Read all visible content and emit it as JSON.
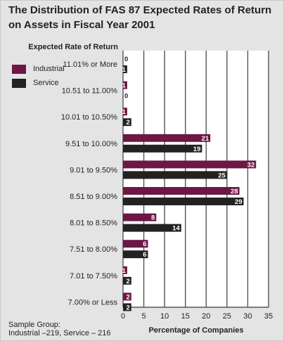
{
  "title": "The Distribution of FAS 87 Expected Rates of Return on Assets in Fiscal Year 2001",
  "sample_group": {
    "line1": "Sample Group:",
    "line2": "Industrial –219, Service – 216"
  },
  "colors": {
    "industrial": "#6e1646",
    "service": "#222222",
    "grid": "#555555"
  },
  "chart_data": {
    "type": "bar",
    "orientation": "horizontal",
    "title": "The Distribution of FAS 87 Expected Rates of Return on Assets in Fiscal Year 2001",
    "ylabel": "Expected Rate of Return",
    "xlabel": "Percentage of Companies",
    "xlim": [
      0,
      35
    ],
    "xticks": [
      0,
      5,
      10,
      15,
      20,
      25,
      30,
      35
    ],
    "grid": true,
    "legend_position": "left",
    "categories": [
      "11.01% or More",
      "10.51 to 11.00%",
      "10.01 to 10.50%",
      "9.51 to 10.00%",
      "9.01 to 9.50%",
      "8.51 to 9.00%",
      "8.01 to 8.50%",
      "7.51 to 8.00%",
      "7.01 to 7.50%",
      "7.00% or Less"
    ],
    "series": [
      {
        "name": "Industrial",
        "values": [
          0,
          1,
          1,
          21,
          32,
          28,
          8,
          6,
          1,
          2
        ]
      },
      {
        "name": "Service",
        "values": [
          1,
          0,
          2,
          19,
          25,
          29,
          14,
          6,
          2,
          2
        ]
      }
    ]
  }
}
